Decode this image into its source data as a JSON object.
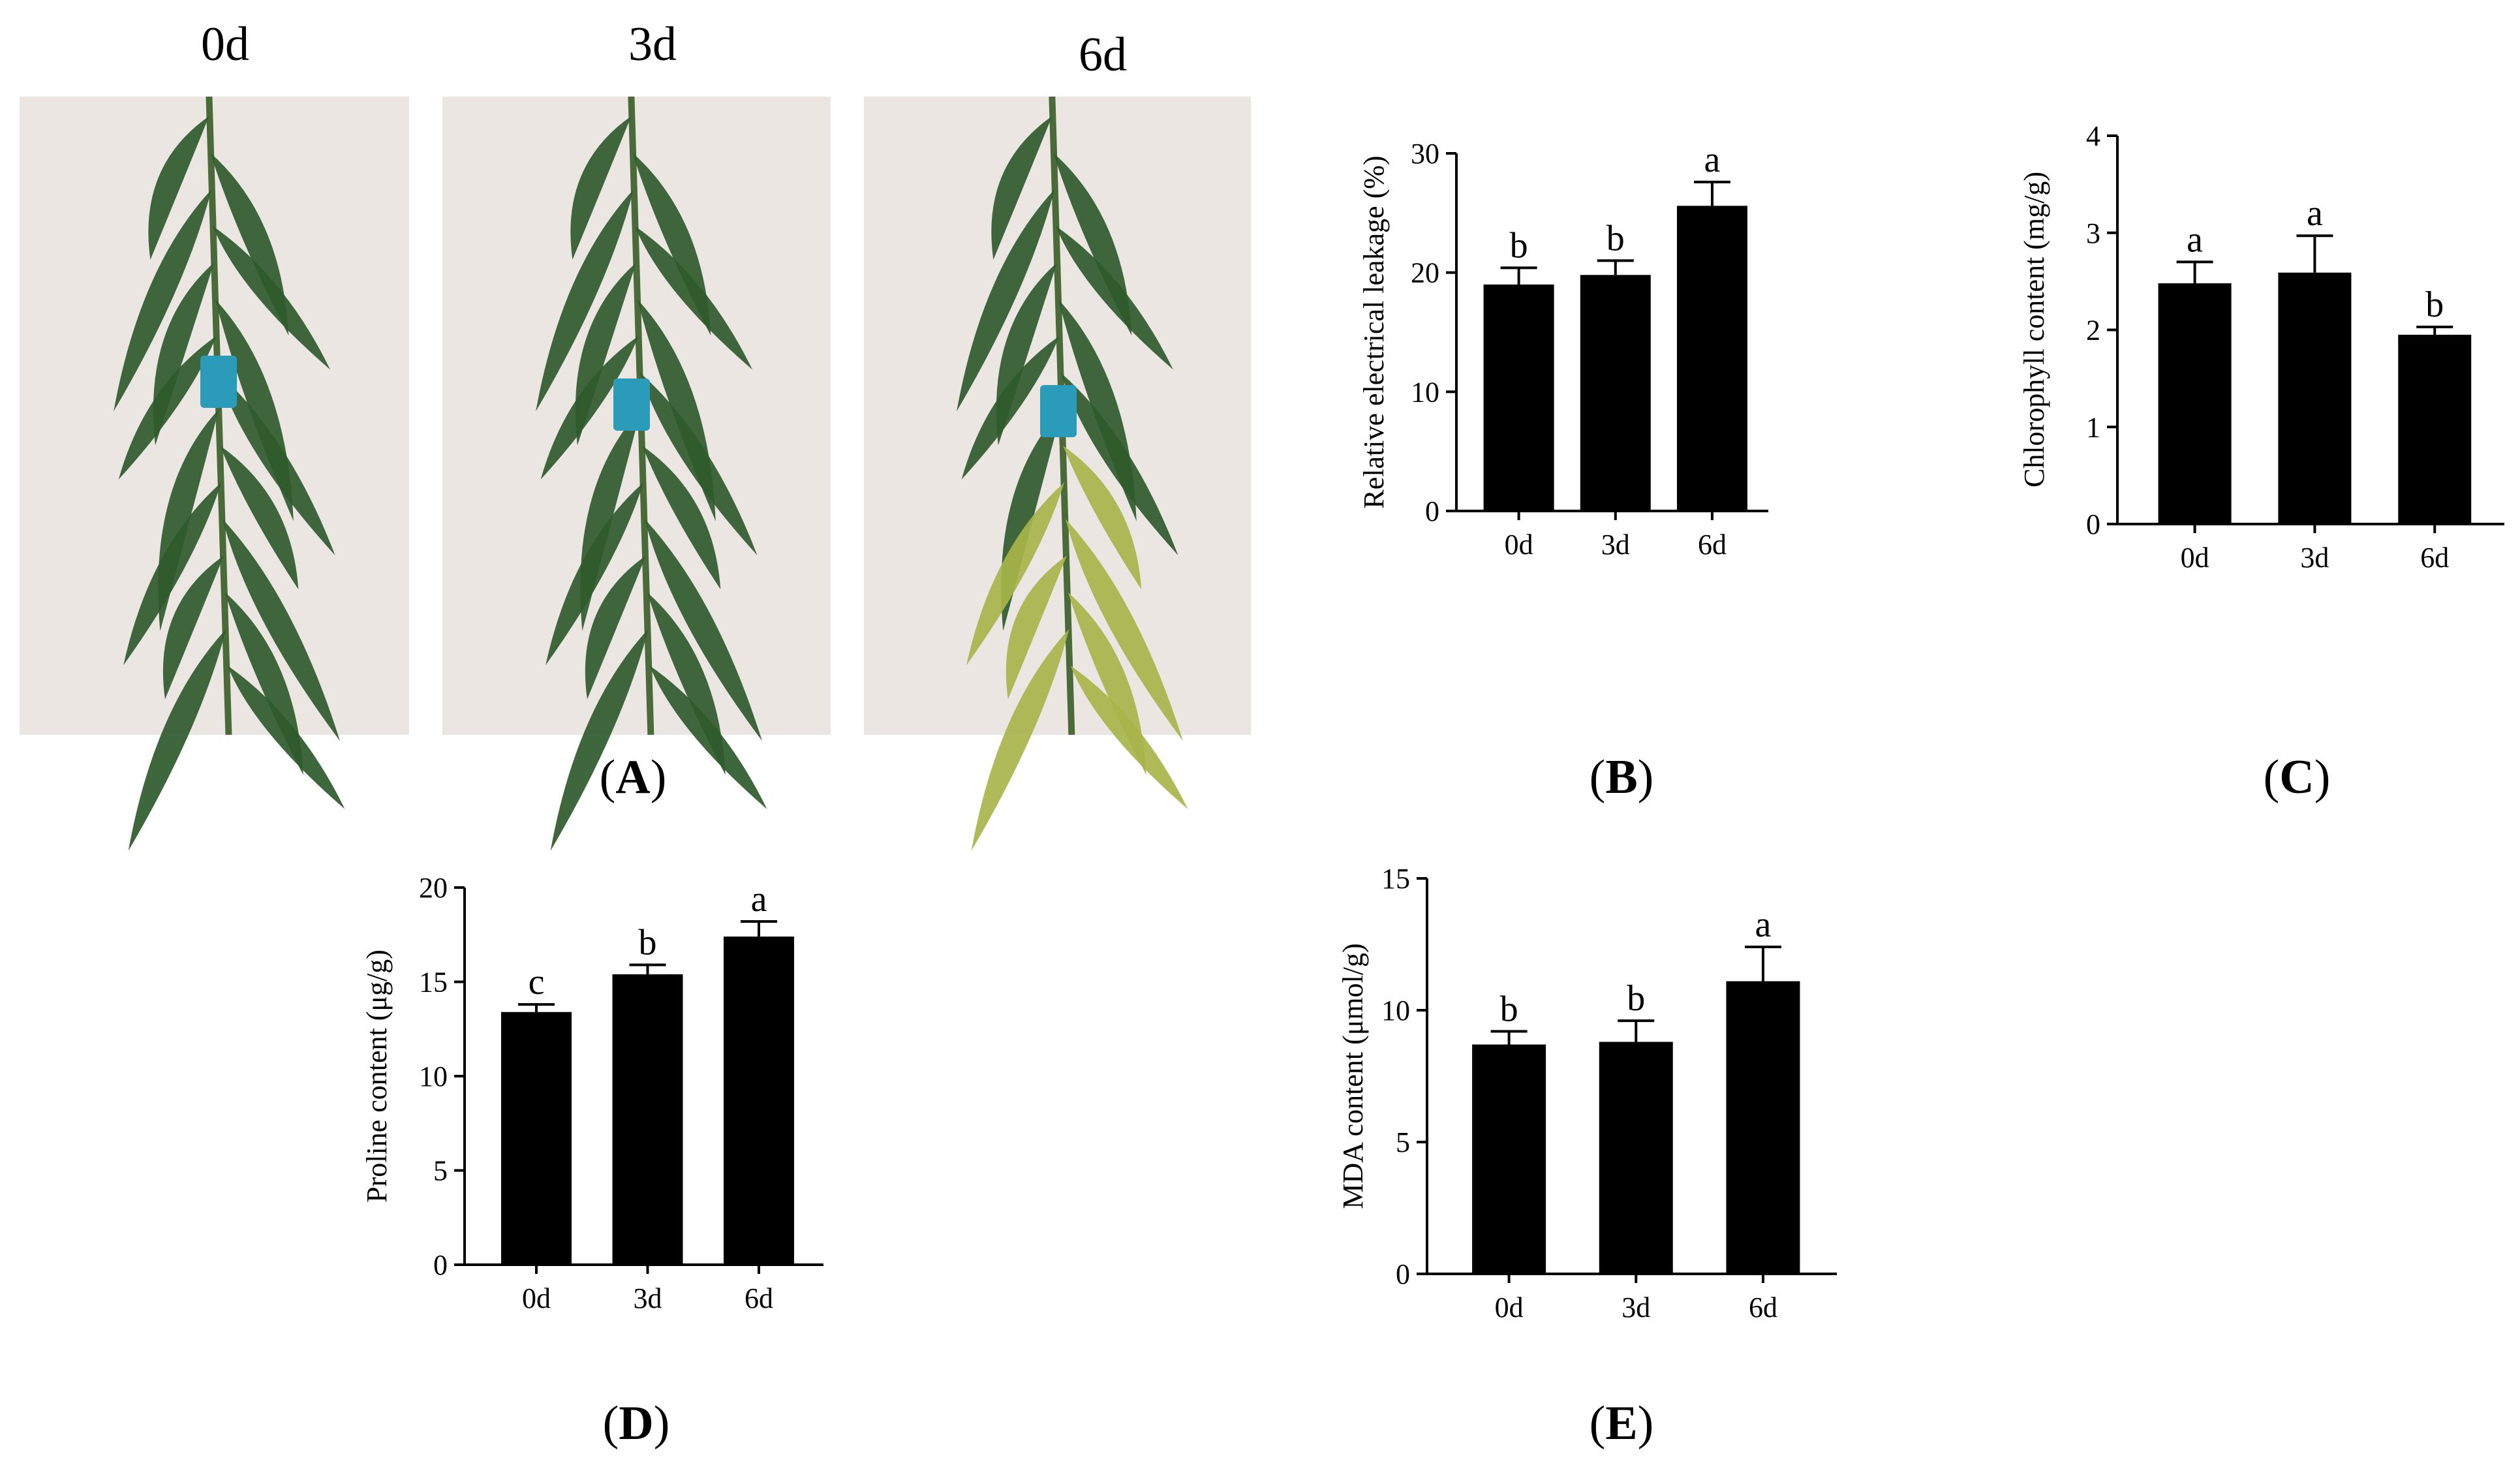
{
  "figure": {
    "photo_labels": [
      "0d",
      "3d",
      "6d"
    ],
    "panel_letters": {
      "A": "A",
      "B": "B",
      "C": "C",
      "D": "D",
      "E": "E"
    },
    "colors": {
      "bar": "#000000",
      "background": "#ffffff",
      "photo_backdrop": "#ece6e2",
      "leaf_dark": "#2f5a2c",
      "leaf_yellow": "#a8b44a",
      "tag": "#2a9bb8"
    }
  },
  "chart_data": [
    {
      "panel": "B",
      "type": "bar",
      "categories": [
        "0d",
        "3d",
        "6d"
      ],
      "values": [
        19.0,
        19.8,
        25.6
      ],
      "errors": [
        1.4,
        1.2,
        2.0
      ],
      "significance": [
        "b",
        "b",
        "a"
      ],
      "ylabel": "Relative electrical leakage (%)",
      "ylim": [
        0,
        30
      ],
      "yticks": [
        "0",
        "10",
        "20",
        "30"
      ],
      "grid": false
    },
    {
      "panel": "C",
      "type": "bar",
      "categories": [
        "0d",
        "3d",
        "6d"
      ],
      "values": [
        2.48,
        2.59,
        1.95
      ],
      "errors": [
        0.22,
        0.38,
        0.08
      ],
      "significance": [
        "a",
        "a",
        "b"
      ],
      "ylabel": "Chlorophyll content (mg/g)",
      "ylim": [
        0,
        4
      ],
      "yticks": [
        "0",
        "1",
        "2",
        "3",
        "4"
      ],
      "grid": false
    },
    {
      "panel": "D",
      "type": "bar",
      "categories": [
        "0d",
        "3d",
        "6d"
      ],
      "values": [
        13.4,
        15.4,
        17.4
      ],
      "errors": [
        0.4,
        0.5,
        0.8
      ],
      "significance": [
        "c",
        "b",
        "a"
      ],
      "ylabel": "Proline content (μg/g)",
      "ylim": [
        0,
        20
      ],
      "yticks": [
        "0",
        "5",
        "10",
        "15",
        "20"
      ],
      "grid": false
    },
    {
      "panel": "E",
      "type": "bar",
      "categories": [
        "0d",
        "3d",
        "6d"
      ],
      "values": [
        8.7,
        8.8,
        11.1
      ],
      "errors": [
        0.5,
        0.8,
        1.3
      ],
      "significance": [
        "b",
        "b",
        "a"
      ],
      "ylabel": "MDA content (μmol/g)",
      "ylim": [
        0,
        15
      ],
      "yticks": [
        "0",
        "5",
        "10",
        "15"
      ],
      "grid": false
    }
  ]
}
